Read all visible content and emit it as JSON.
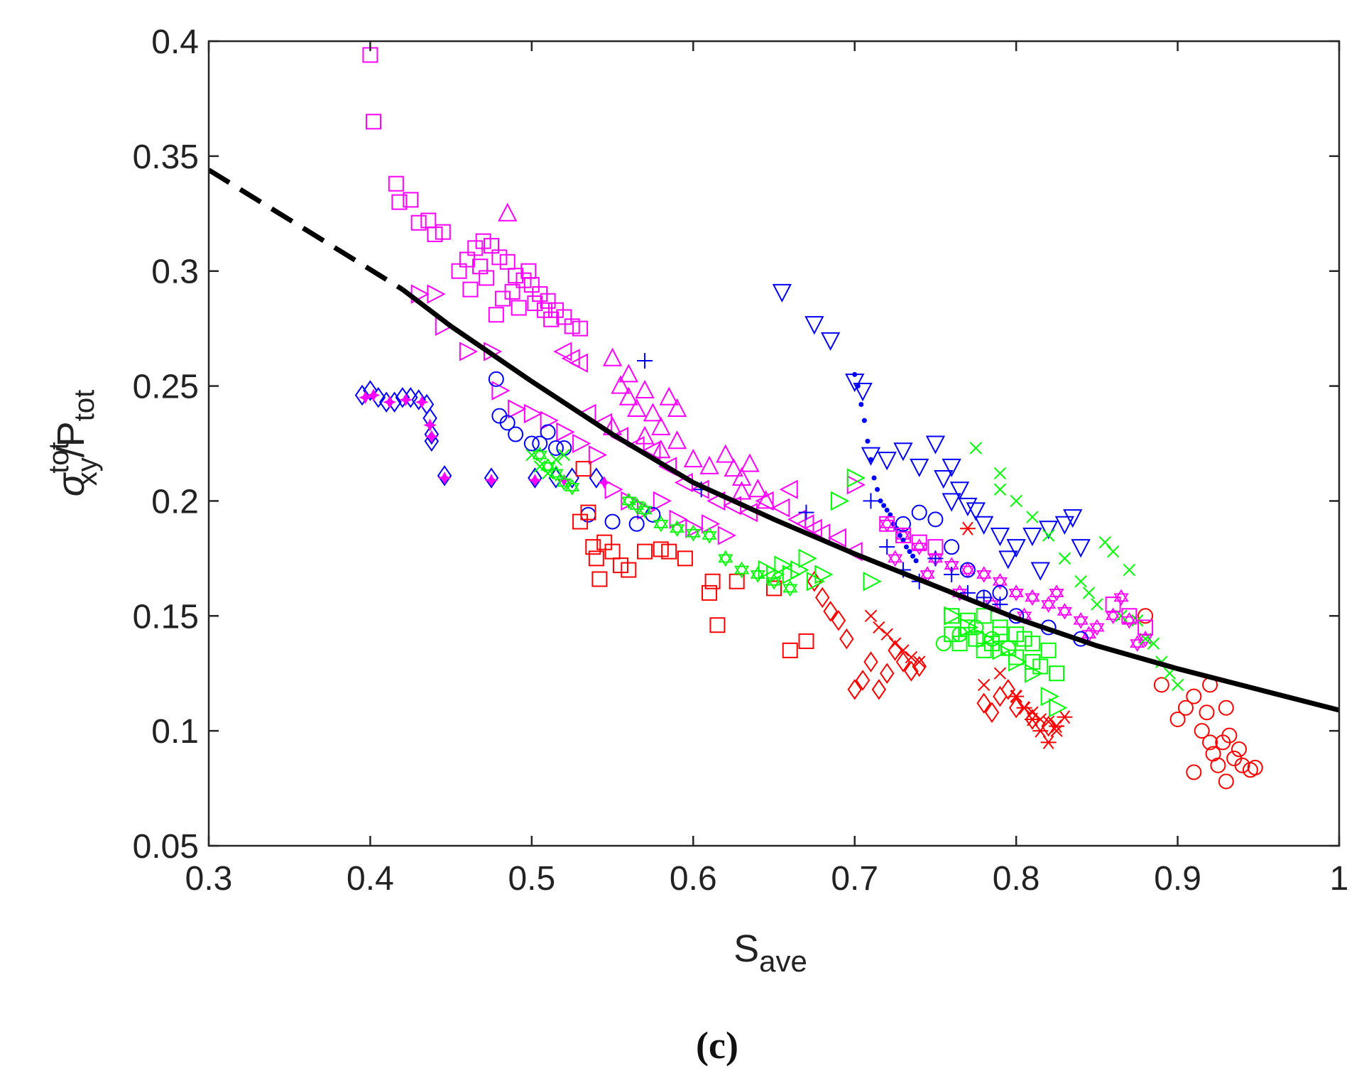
{
  "chart_data": {
    "type": "scatter",
    "title": "",
    "panel_label": "(c)",
    "xlabel": {
      "base": "S",
      "sub": "ave"
    },
    "ylabel": {
      "sigma": "σ",
      "sup": "tot",
      "sub": "xy",
      "slash": "/P",
      "sub2": "tot"
    },
    "xlim": [
      0.3,
      1.0
    ],
    "ylim": [
      0.05,
      0.4
    ],
    "xticks": [
      0.3,
      0.4,
      0.5,
      0.6,
      0.7,
      0.8,
      0.9,
      1.0
    ],
    "xtick_labels": [
      "0.3",
      "0.4",
      "0.5",
      "0.6",
      "0.7",
      "0.8",
      "0.9",
      "1"
    ],
    "yticks": [
      0.05,
      0.1,
      0.15,
      0.2,
      0.25,
      0.3,
      0.35,
      0.4
    ],
    "ytick_labels": [
      "0.05",
      "0.1",
      "0.15",
      "0.2",
      "0.25",
      "0.3",
      "0.35",
      "0.4"
    ],
    "grid": false,
    "colors": {
      "red": "#ff0000",
      "green": "#00ff00",
      "blue": "#0000ff",
      "magenta": "#ff00ff",
      "fit": "#000000"
    },
    "fit_curve": {
      "dashed": {
        "x": [
          0.3,
          0.33,
          0.36,
          0.39,
          0.42
        ],
        "y": [
          0.344,
          0.331,
          0.318,
          0.305,
          0.292
        ]
      },
      "solid": {
        "x": [
          0.42,
          0.45,
          0.5,
          0.55,
          0.6,
          0.65,
          0.7,
          0.75,
          0.8,
          0.85,
          0.9,
          0.95,
          1.0
        ],
        "y": [
          0.292,
          0.276,
          0.252,
          0.229,
          0.208,
          0.192,
          0.177,
          0.163,
          0.149,
          0.137,
          0.127,
          0.118,
          0.109
        ]
      }
    },
    "series": [
      {
        "name": "magenta-square",
        "color": "magenta",
        "marker": "square",
        "x": [
          0.4,
          0.402,
          0.416,
          0.418,
          0.425,
          0.43,
          0.436,
          0.44,
          0.445,
          0.455,
          0.46,
          0.465,
          0.47,
          0.475,
          0.48,
          0.485,
          0.49,
          0.495,
          0.5,
          0.505,
          0.51,
          0.515,
          0.52,
          0.525,
          0.53,
          0.462,
          0.472,
          0.482,
          0.492,
          0.502,
          0.512,
          0.468,
          0.478,
          0.488,
          0.498,
          0.508
        ],
        "y": [
          0.394,
          0.365,
          0.338,
          0.33,
          0.331,
          0.321,
          0.322,
          0.316,
          0.317,
          0.3,
          0.305,
          0.31,
          0.313,
          0.311,
          0.306,
          0.304,
          0.298,
          0.296,
          0.294,
          0.29,
          0.287,
          0.283,
          0.28,
          0.276,
          0.275,
          0.292,
          0.297,
          0.288,
          0.284,
          0.286,
          0.279,
          0.302,
          0.281,
          0.291,
          0.3,
          0.283
        ]
      },
      {
        "name": "magenta-triangle-up",
        "color": "magenta",
        "marker": "tri-up",
        "x": [
          0.485,
          0.55,
          0.555,
          0.56,
          0.565,
          0.57,
          0.575,
          0.58,
          0.585,
          0.59,
          0.62,
          0.625,
          0.63,
          0.635,
          0.64,
          0.55,
          0.56,
          0.57,
          0.58,
          0.59,
          0.6,
          0.61,
          0.63,
          0.645
        ],
        "y": [
          0.325,
          0.262,
          0.25,
          0.245,
          0.24,
          0.248,
          0.238,
          0.232,
          0.245,
          0.226,
          0.22,
          0.214,
          0.21,
          0.216,
          0.205,
          0.232,
          0.255,
          0.228,
          0.222,
          0.24,
          0.218,
          0.215,
          0.204,
          0.2
        ]
      },
      {
        "name": "magenta-triangle-left",
        "color": "magenta",
        "marker": "tri-left",
        "x": [
          0.52,
          0.525,
          0.53,
          0.535,
          0.545,
          0.555,
          0.565,
          0.575,
          0.585,
          0.595,
          0.605,
          0.615,
          0.625,
          0.635,
          0.645,
          0.655,
          0.66,
          0.665,
          0.67,
          0.675,
          0.68,
          0.69,
          0.7
        ],
        "y": [
          0.265,
          0.262,
          0.26,
          0.238,
          0.234,
          0.228,
          0.224,
          0.222,
          0.215,
          0.208,
          0.205,
          0.2,
          0.198,
          0.195,
          0.2,
          0.197,
          0.205,
          0.192,
          0.19,
          0.188,
          0.186,
          0.184,
          0.178
        ]
      },
      {
        "name": "magenta-triangle-right",
        "color": "magenta",
        "marker": "tri-right",
        "x": [
          0.43,
          0.44,
          0.445,
          0.46,
          0.475,
          0.48,
          0.49,
          0.5,
          0.51,
          0.52,
          0.53,
          0.54,
          0.55,
          0.56,
          0.57,
          0.58,
          0.59,
          0.6,
          0.61,
          0.62,
          0.7
        ],
        "y": [
          0.29,
          0.29,
          0.276,
          0.265,
          0.265,
          0.248,
          0.24,
          0.238,
          0.235,
          0.23,
          0.225,
          0.22,
          0.205,
          0.2,
          0.196,
          0.2,
          0.192,
          0.188,
          0.19,
          0.185,
          0.207
        ]
      },
      {
        "name": "magenta-star",
        "color": "magenta",
        "marker": "hexagram",
        "x": [
          0.72,
          0.73,
          0.74,
          0.75,
          0.76,
          0.77,
          0.78,
          0.79,
          0.8,
          0.81,
          0.82,
          0.83,
          0.84,
          0.85,
          0.86,
          0.87,
          0.88,
          0.725,
          0.745,
          0.765,
          0.785,
          0.805,
          0.825,
          0.845,
          0.865,
          0.875
        ],
        "y": [
          0.19,
          0.185,
          0.18,
          0.175,
          0.172,
          0.17,
          0.168,
          0.165,
          0.16,
          0.158,
          0.155,
          0.152,
          0.148,
          0.145,
          0.15,
          0.148,
          0.14,
          0.175,
          0.168,
          0.16,
          0.155,
          0.15,
          0.16,
          0.142,
          0.158,
          0.138
        ]
      },
      {
        "name": "blue-triangle-down",
        "color": "blue",
        "marker": "tri-down",
        "x": [
          0.655,
          0.675,
          0.685,
          0.7,
          0.705,
          0.71,
          0.72,
          0.73,
          0.74,
          0.75,
          0.755,
          0.76,
          0.765,
          0.77,
          0.78,
          0.79,
          0.8,
          0.81,
          0.82,
          0.83,
          0.835,
          0.84,
          0.76,
          0.775,
          0.795,
          0.815
        ],
        "y": [
          0.291,
          0.277,
          0.27,
          0.252,
          0.248,
          0.22,
          0.218,
          0.222,
          0.215,
          0.225,
          0.21,
          0.2,
          0.205,
          0.198,
          0.19,
          0.185,
          0.18,
          0.185,
          0.188,
          0.19,
          0.193,
          0.18,
          0.215,
          0.196,
          0.175,
          0.17
        ]
      },
      {
        "name": "blue-circle",
        "color": "blue",
        "marker": "circle",
        "x": [
          0.478,
          0.48,
          0.485,
          0.49,
          0.5,
          0.505,
          0.51,
          0.515,
          0.52,
          0.535,
          0.55,
          0.565,
          0.575,
          0.73,
          0.74,
          0.75,
          0.76,
          0.77,
          0.78,
          0.79,
          0.8,
          0.82,
          0.84
        ],
        "y": [
          0.253,
          0.237,
          0.234,
          0.229,
          0.225,
          0.225,
          0.23,
          0.223,
          0.223,
          0.194,
          0.191,
          0.19,
          0.194,
          0.19,
          0.195,
          0.192,
          0.18,
          0.17,
          0.158,
          0.16,
          0.15,
          0.145,
          0.14
        ]
      },
      {
        "name": "blue-plus",
        "color": "blue",
        "marker": "plus",
        "x": [
          0.57,
          0.605,
          0.67,
          0.71,
          0.72,
          0.73,
          0.74,
          0.75,
          0.76,
          0.77,
          0.78,
          0.79
        ],
        "y": [
          0.261,
          0.205,
          0.195,
          0.2,
          0.18,
          0.17,
          0.165,
          0.175,
          0.168,
          0.16,
          0.158,
          0.155
        ]
      },
      {
        "name": "blue-dot",
        "color": "blue",
        "marker": "dot",
        "x": [
          0.7,
          0.702,
          0.704,
          0.706,
          0.708,
          0.71,
          0.712,
          0.714,
          0.716,
          0.718,
          0.72,
          0.722,
          0.724,
          0.726,
          0.728,
          0.73,
          0.732,
          0.734,
          0.736,
          0.738
        ],
        "y": [
          0.255,
          0.25,
          0.242,
          0.235,
          0.226,
          0.218,
          0.21,
          0.205,
          0.2,
          0.198,
          0.196,
          0.194,
          0.19,
          0.188,
          0.185,
          0.183,
          0.18,
          0.178,
          0.176,
          0.174
        ]
      },
      {
        "name": "blue-diamond",
        "color": "blue",
        "marker": "diamond",
        "x": [
          0.395,
          0.4,
          0.405,
          0.41,
          0.415,
          0.42,
          0.425,
          0.43,
          0.435,
          0.437,
          0.438,
          0.438,
          0.446,
          0.475,
          0.502,
          0.515,
          0.525,
          0.54
        ],
        "y": [
          0.246,
          0.248,
          0.245,
          0.243,
          0.243,
          0.245,
          0.245,
          0.244,
          0.242,
          0.236,
          0.229,
          0.226,
          0.211,
          0.21,
          0.21,
          0.21,
          0.21,
          0.21
        ]
      },
      {
        "name": "magenta-diamond",
        "color": "magenta",
        "marker": "star-small",
        "x": [
          0.397,
          0.402,
          0.412,
          0.422,
          0.432,
          0.437,
          0.438,
          0.446,
          0.475,
          0.502,
          0.52,
          0.545
        ],
        "y": [
          0.245,
          0.246,
          0.243,
          0.244,
          0.243,
          0.233,
          0.228,
          0.21,
          0.209,
          0.209,
          0.209,
          0.208
        ]
      },
      {
        "name": "red-square",
        "color": "red",
        "marker": "square",
        "x": [
          0.53,
          0.532,
          0.535,
          0.538,
          0.54,
          0.542,
          0.545,
          0.55,
          0.555,
          0.56,
          0.57,
          0.58,
          0.585,
          0.595,
          0.61,
          0.612,
          0.615,
          0.627,
          0.65,
          0.66,
          0.67
        ],
        "y": [
          0.191,
          0.214,
          0.195,
          0.18,
          0.175,
          0.166,
          0.182,
          0.178,
          0.172,
          0.17,
          0.178,
          0.179,
          0.178,
          0.175,
          0.16,
          0.165,
          0.146,
          0.165,
          0.162,
          0.135,
          0.139
        ]
      },
      {
        "name": "red-diamond",
        "color": "red",
        "marker": "diamond",
        "x": [
          0.675,
          0.68,
          0.685,
          0.69,
          0.695,
          0.7,
          0.705,
          0.71,
          0.715,
          0.72,
          0.725,
          0.73,
          0.735,
          0.74,
          0.78,
          0.785,
          0.79,
          0.795,
          0.8,
          0.81,
          0.82
        ],
        "y": [
          0.165,
          0.158,
          0.152,
          0.148,
          0.14,
          0.118,
          0.122,
          0.13,
          0.118,
          0.125,
          0.135,
          0.13,
          0.126,
          0.128,
          0.112,
          0.108,
          0.115,
          0.118,
          0.11,
          0.105,
          0.102
        ]
      },
      {
        "name": "red-cross",
        "color": "red",
        "marker": "cross",
        "x": [
          0.71,
          0.715,
          0.72,
          0.725,
          0.73,
          0.735,
          0.74,
          0.78,
          0.79,
          0.8,
          0.805,
          0.81,
          0.815,
          0.82,
          0.825
        ],
        "y": [
          0.15,
          0.145,
          0.142,
          0.138,
          0.135,
          0.132,
          0.13,
          0.12,
          0.125,
          0.115,
          0.11,
          0.108,
          0.105,
          0.104,
          0.1
        ]
      },
      {
        "name": "red-asterisk",
        "color": "red",
        "marker": "asterisk",
        "x": [
          0.77,
          0.8,
          0.805,
          0.81,
          0.815,
          0.82,
          0.825,
          0.83
        ],
        "y": [
          0.188,
          0.115,
          0.11,
          0.105,
          0.1,
          0.095,
          0.102,
          0.106
        ]
      },
      {
        "name": "red-circle",
        "color": "red",
        "marker": "circle",
        "x": [
          0.88,
          0.89,
          0.9,
          0.905,
          0.91,
          0.915,
          0.918,
          0.92,
          0.922,
          0.925,
          0.928,
          0.93,
          0.932,
          0.935,
          0.938,
          0.94,
          0.945,
          0.948,
          0.91,
          0.92,
          0.93
        ],
        "y": [
          0.15,
          0.12,
          0.105,
          0.11,
          0.115,
          0.1,
          0.108,
          0.095,
          0.09,
          0.085,
          0.095,
          0.078,
          0.098,
          0.088,
          0.092,
          0.085,
          0.083,
          0.084,
          0.082,
          0.12,
          0.11
        ]
      },
      {
        "name": "green-cross",
        "color": "green",
        "marker": "cross",
        "x": [
          0.5,
          0.505,
          0.51,
          0.515,
          0.52,
          0.775,
          0.79,
          0.8,
          0.81,
          0.82,
          0.83,
          0.84,
          0.845,
          0.85,
          0.855,
          0.86,
          0.865,
          0.87,
          0.875,
          0.88,
          0.885,
          0.89,
          0.895,
          0.9,
          0.79
        ],
        "y": [
          0.22,
          0.215,
          0.212,
          0.218,
          0.22,
          0.223,
          0.212,
          0.2,
          0.193,
          0.185,
          0.175,
          0.165,
          0.16,
          0.155,
          0.182,
          0.178,
          0.15,
          0.17,
          0.148,
          0.14,
          0.138,
          0.13,
          0.125,
          0.12,
          0.205
        ]
      },
      {
        "name": "green-star",
        "color": "green",
        "marker": "hexagram",
        "x": [
          0.505,
          0.51,
          0.515,
          0.52,
          0.525,
          0.56,
          0.565,
          0.57,
          0.58,
          0.59,
          0.6,
          0.61,
          0.62,
          0.63,
          0.64,
          0.65,
          0.66
        ],
        "y": [
          0.22,
          0.215,
          0.212,
          0.208,
          0.206,
          0.2,
          0.198,
          0.196,
          0.19,
          0.188,
          0.186,
          0.185,
          0.175,
          0.17,
          0.168,
          0.165,
          0.162
        ]
      },
      {
        "name": "green-triangle-right",
        "color": "green",
        "marker": "tri-right",
        "x": [
          0.645,
          0.65,
          0.655,
          0.66,
          0.665,
          0.67,
          0.675,
          0.68,
          0.69,
          0.7,
          0.71,
          0.76,
          0.77,
          0.78,
          0.79,
          0.8,
          0.81,
          0.82,
          0.825
        ],
        "y": [
          0.17,
          0.168,
          0.172,
          0.168,
          0.17,
          0.175,
          0.165,
          0.168,
          0.2,
          0.21,
          0.165,
          0.15,
          0.145,
          0.14,
          0.135,
          0.13,
          0.125,
          0.115,
          0.11
        ]
      },
      {
        "name": "green-square",
        "color": "green",
        "marker": "square",
        "x": [
          0.76,
          0.765,
          0.77,
          0.775,
          0.78,
          0.785,
          0.79,
          0.795,
          0.8,
          0.805,
          0.81,
          0.815,
          0.82,
          0.825,
          0.76,
          0.77,
          0.78,
          0.79,
          0.8,
          0.81
        ],
        "y": [
          0.142,
          0.138,
          0.145,
          0.14,
          0.135,
          0.138,
          0.142,
          0.136,
          0.132,
          0.14,
          0.13,
          0.128,
          0.135,
          0.125,
          0.15,
          0.148,
          0.15,
          0.145,
          0.142,
          0.138
        ]
      },
      {
        "name": "green-circle",
        "color": "green",
        "marker": "circle",
        "x": [
          0.755,
          0.765,
          0.775,
          0.785,
          0.795
        ],
        "y": [
          0.138,
          0.142,
          0.145,
          0.14,
          0.136
        ]
      },
      {
        "name": "magenta-square-right",
        "color": "magenta",
        "marker": "square",
        "x": [
          0.72,
          0.73,
          0.74,
          0.75,
          0.86,
          0.87,
          0.88
        ],
        "y": [
          0.19,
          0.185,
          0.182,
          0.18,
          0.155,
          0.15,
          0.145
        ]
      }
    ]
  }
}
